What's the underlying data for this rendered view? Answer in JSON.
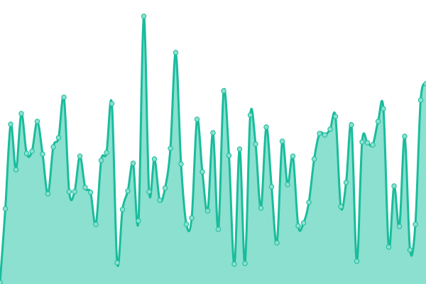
{
  "chart_data": {
    "type": "area",
    "title": "",
    "xlabel": "",
    "ylabel": "",
    "grid": false,
    "legend": "none",
    "xlim": [
      0,
      80
    ],
    "ylim": [
      0,
      400
    ],
    "x": [
      0,
      1,
      2,
      3,
      4,
      5,
      6,
      7,
      8,
      9,
      10,
      11,
      12,
      13,
      14,
      15,
      16,
      17,
      18,
      19,
      20,
      21,
      22,
      23,
      24,
      25,
      26,
      27,
      28,
      29,
      30,
      31,
      32,
      33,
      34,
      35,
      36,
      37,
      38,
      39,
      40,
      41,
      42,
      43,
      44,
      45,
      46,
      47,
      48,
      49,
      50,
      51,
      52,
      53,
      54,
      55,
      56,
      57,
      58,
      59,
      60,
      61,
      62,
      63,
      64,
      65,
      66,
      67,
      68,
      69,
      70,
      71,
      72,
      73,
      74,
      75,
      76,
      77,
      78,
      79,
      80
    ],
    "values": [
      2,
      106,
      225,
      161,
      240,
      184,
      187,
      229,
      183,
      127,
      193,
      206,
      263,
      130,
      130,
      180,
      136,
      129,
      84,
      174,
      185,
      254,
      30,
      105,
      131,
      170,
      89,
      377,
      130,
      176,
      118,
      135,
      191,
      326,
      169,
      84,
      93,
      232,
      158,
      103,
      213,
      77,
      272,
      181,
      28,
      190,
      29,
      238,
      197,
      107,
      221,
      137,
      58,
      201,
      140,
      180,
      82,
      86,
      115,
      176,
      212,
      210,
      218,
      236,
      109,
      143,
      224,
      32,
      200,
      199,
      196,
      229,
      247,
      52,
      138,
      81,
      208,
      48,
      84,
      259,
      282
    ],
    "colors": {
      "line": "#1abc9c",
      "fill": "#8be0cf",
      "marker_fill": "#8be0cf",
      "marker_stroke": "#1abc9c"
    }
  }
}
